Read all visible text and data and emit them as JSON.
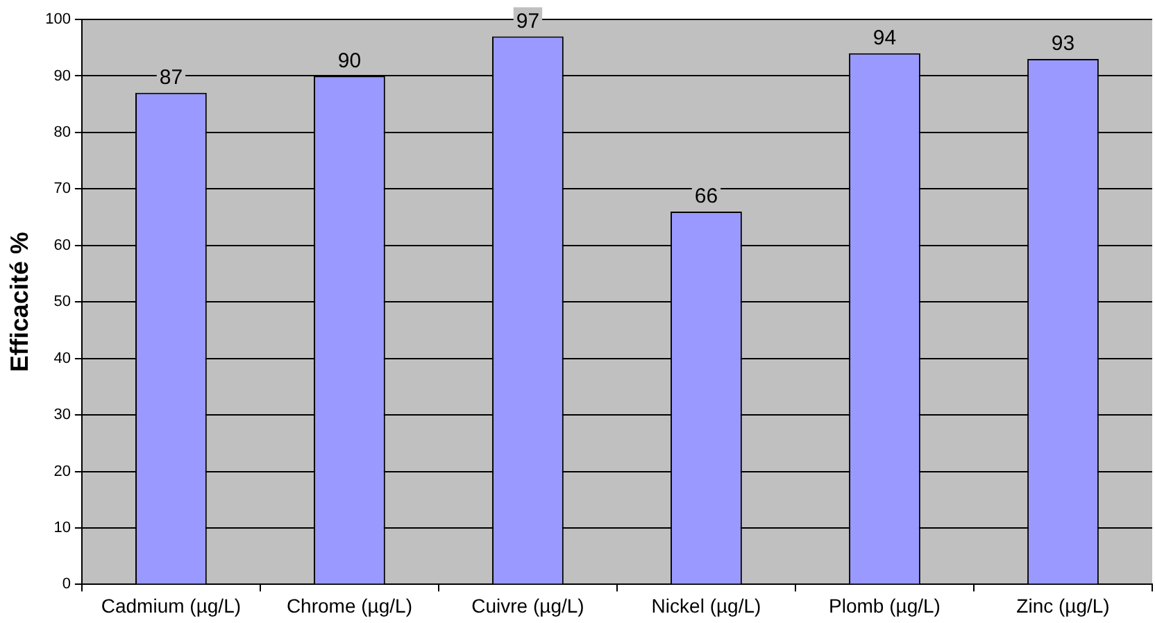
{
  "chart_data": {
    "type": "bar",
    "ylabel": "Efficacité %",
    "categories": [
      "Cadmium (µg/L)",
      "Chrome (µg/L)",
      "Cuivre (µg/L)",
      "Nickel (µg/L)",
      "Plomb (µg/L)",
      "Zinc (µg/L)"
    ],
    "values": [
      87,
      90,
      97,
      66,
      94,
      93
    ],
    "color": "#9999ff",
    "ylim": [
      0,
      100
    ],
    "yticks": [
      0,
      10,
      20,
      30,
      40,
      50,
      60,
      70,
      80,
      90,
      100
    ],
    "grid": "y",
    "data_labels": true,
    "legend": false
  }
}
